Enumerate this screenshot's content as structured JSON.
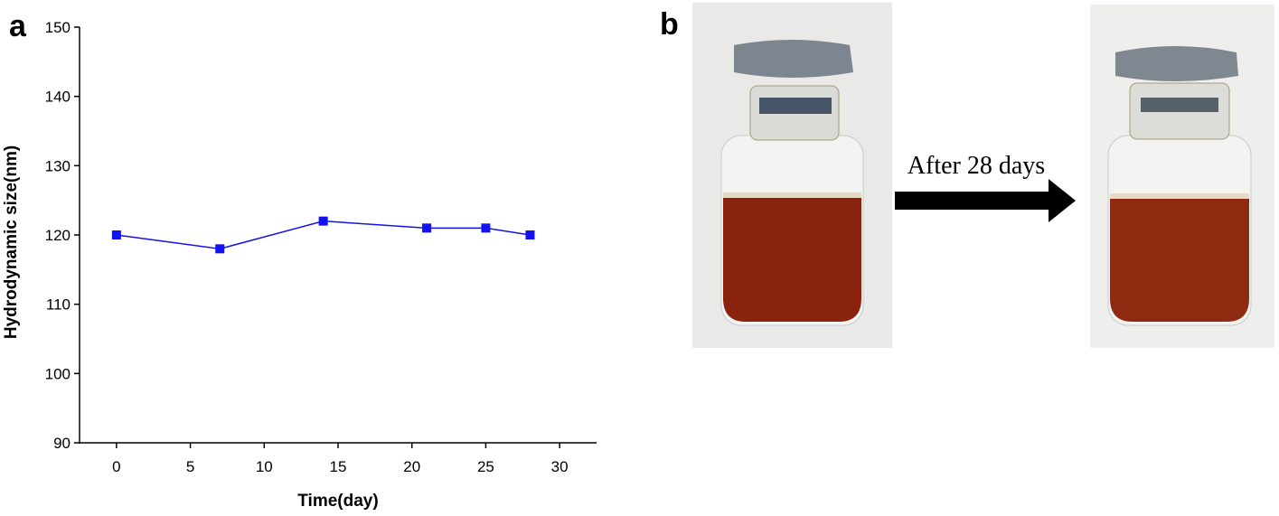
{
  "chart_data": {
    "type": "line",
    "panel_label": "a",
    "xlabel": "Time(day)",
    "ylabel": "Hydrodynamic size(nm)",
    "x": [
      0,
      7,
      14,
      21,
      25,
      28
    ],
    "series": [
      {
        "color": "#1212f0",
        "values": [
          120,
          118,
          122,
          121,
          121,
          120
        ]
      }
    ],
    "xlim": [
      -2.5,
      32.5
    ],
    "ylim": [
      90,
      150
    ],
    "xticks": [
      0,
      5,
      10,
      15,
      20,
      25,
      30
    ],
    "yticks": [
      90,
      100,
      110,
      120,
      130,
      140,
      150
    ]
  },
  "photo_panel": {
    "panel_label": "b",
    "annotation": "After 28 days"
  }
}
